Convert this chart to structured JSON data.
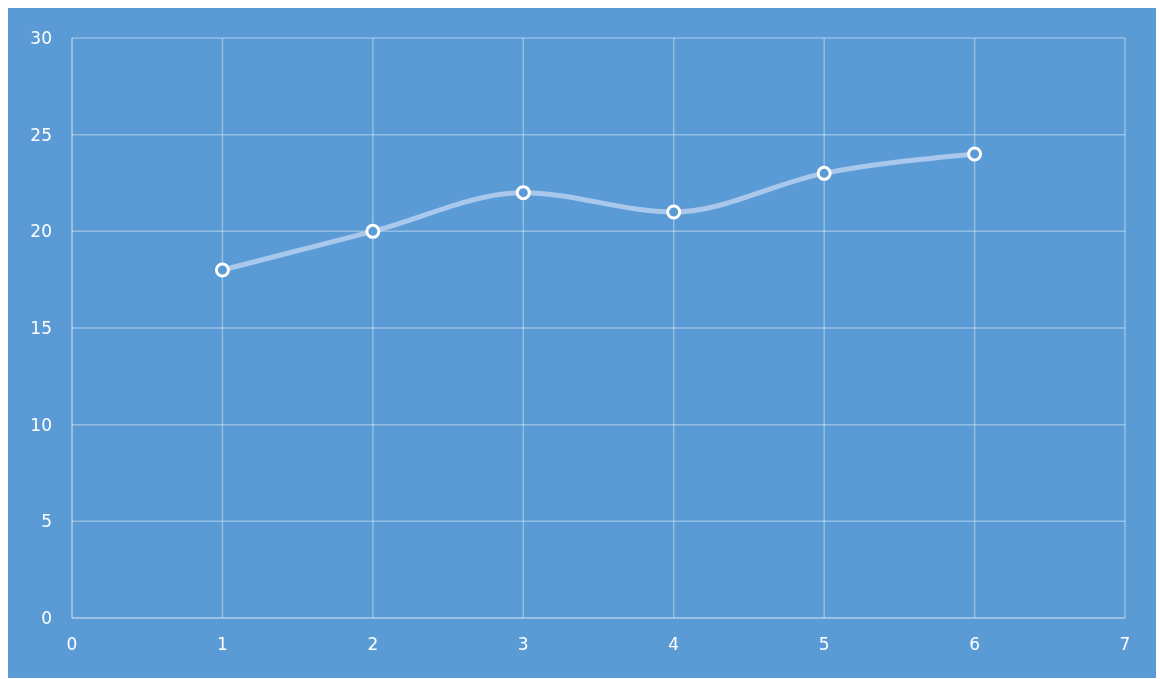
{
  "chart_data": {
    "type": "line",
    "x": [
      1,
      2,
      3,
      4,
      5,
      6
    ],
    "series": [
      {
        "color": "#a9c8ec",
        "values": [
          18,
          20,
          22,
          21,
          23,
          24
        ]
      }
    ],
    "xlim": [
      0,
      7
    ],
    "xticks": [
      0,
      1,
      2,
      3,
      4,
      5,
      6,
      7
    ],
    "ylim": [
      0,
      30
    ],
    "yticks": [
      0,
      5,
      10,
      15,
      20,
      25,
      30
    ],
    "grid": true,
    "marker": "circle",
    "line_style": "solid"
  }
}
